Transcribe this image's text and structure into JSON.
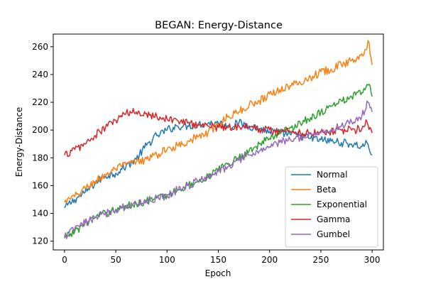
{
  "chart_data": {
    "type": "line",
    "title": "BEGAN: Energy-Distance",
    "xlabel": "Epoch",
    "ylabel": "Energy-Distance",
    "xlim": [
      -11,
      311
    ],
    "ylim": [
      113.7,
      269.1
    ],
    "xticks": [
      0,
      50,
      100,
      150,
      200,
      250,
      300
    ],
    "yticks": [
      120,
      140,
      160,
      180,
      200,
      220,
      240,
      260
    ],
    "grid": false,
    "legend_position": "lower-right",
    "series": [
      {
        "name": "Normal",
        "color": "#1f77b4",
        "x": [
          0,
          10,
          20,
          30,
          40,
          50,
          60,
          70,
          80,
          90,
          100,
          110,
          120,
          130,
          140,
          150,
          160,
          170,
          180,
          190,
          200,
          210,
          220,
          230,
          240,
          250,
          260,
          270,
          280,
          290,
          295,
          300
        ],
        "y": [
          144,
          150,
          155,
          162,
          167,
          169,
          174,
          179,
          189,
          196,
          200,
          203,
          203,
          204,
          205,
          205,
          203,
          205,
          203,
          201,
          199,
          198,
          197,
          196,
          194,
          193,
          192,
          191,
          190,
          188,
          191,
          182
        ]
      },
      {
        "name": "Beta",
        "color": "#ff7f0e",
        "x": [
          0,
          10,
          20,
          30,
          40,
          50,
          60,
          70,
          80,
          90,
          100,
          110,
          120,
          130,
          140,
          150,
          160,
          170,
          180,
          190,
          200,
          210,
          220,
          230,
          240,
          250,
          260,
          270,
          280,
          290,
          297,
          300
        ],
        "y": [
          148,
          152,
          158,
          163,
          168,
          172,
          175,
          177,
          179,
          182,
          186,
          189,
          192,
          195,
          198,
          204,
          210,
          213,
          218,
          221,
          226,
          229,
          232,
          234,
          238,
          242,
          244,
          247,
          250,
          255,
          263,
          247
        ]
      },
      {
        "name": "Exponential",
        "color": "#2ca02c",
        "x": [
          0,
          10,
          20,
          30,
          40,
          50,
          60,
          70,
          80,
          90,
          100,
          110,
          120,
          130,
          140,
          150,
          160,
          170,
          180,
          190,
          200,
          210,
          220,
          230,
          240,
          250,
          260,
          270,
          280,
          290,
          297,
          300
        ],
        "y": [
          122,
          127,
          133,
          137,
          140,
          143,
          145,
          147,
          149,
          151,
          153,
          157,
          160,
          163,
          167,
          171,
          176,
          180,
          185,
          190,
          194,
          198,
          202,
          205,
          209,
          213,
          217,
          221,
          224,
          227,
          233,
          224
        ]
      },
      {
        "name": "Gamma",
        "color": "#d62728",
        "x": [
          0,
          10,
          20,
          30,
          40,
          50,
          60,
          70,
          80,
          90,
          100,
          110,
          120,
          130,
          140,
          150,
          160,
          170,
          180,
          190,
          200,
          210,
          220,
          230,
          240,
          250,
          260,
          270,
          280,
          290,
          295,
          300
        ],
        "y": [
          182,
          186,
          190,
          196,
          202,
          207,
          212,
          213,
          212,
          210,
          208,
          207,
          205,
          204,
          203,
          202,
          202,
          203,
          202,
          201,
          200,
          199,
          199,
          198,
          198,
          199,
          199,
          200,
          200,
          201,
          206,
          198
        ]
      },
      {
        "name": "Gumbel",
        "color": "#9467bd",
        "x": [
          0,
          10,
          20,
          30,
          40,
          50,
          60,
          70,
          80,
          90,
          100,
          110,
          120,
          130,
          140,
          150,
          160,
          170,
          180,
          190,
          200,
          210,
          220,
          230,
          240,
          250,
          260,
          270,
          280,
          290,
          296,
          300
        ],
        "y": [
          123,
          129,
          133,
          137,
          140,
          143,
          145,
          147,
          149,
          151,
          153,
          157,
          160,
          163,
          167,
          170,
          174,
          178,
          182,
          185,
          188,
          191,
          193,
          195,
          197,
          198,
          200,
          203,
          206,
          210,
          220,
          213
        ]
      }
    ]
  }
}
